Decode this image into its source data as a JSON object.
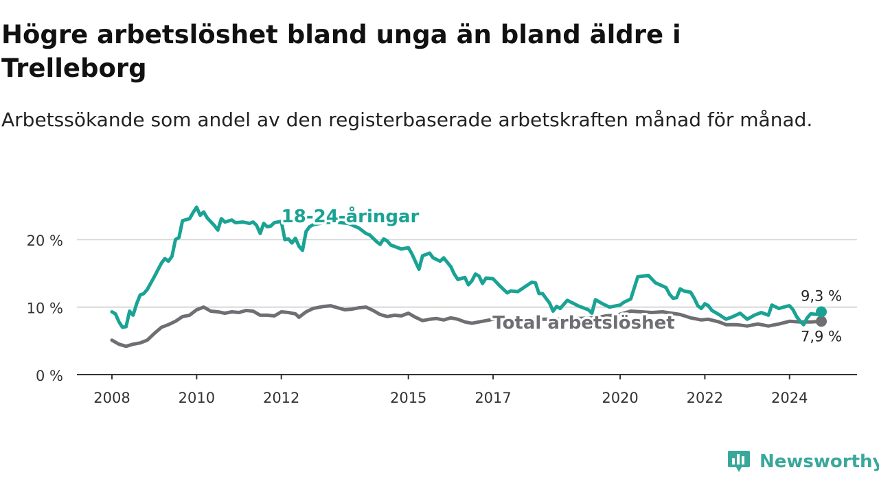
{
  "title": "Högre arbetslöshet bland unga än bland äldre i Trelleborg",
  "subtitle": "Arbetssökande som andel av den registerbaserade arbetskraften månad för månad.",
  "brand": {
    "name": "Newsworthy",
    "icon": "newsworthy-logo-icon",
    "color": "#3aa79b"
  },
  "chart_data": {
    "type": "line",
    "title": "Högre arbetslöshet bland unga än bland äldre i Trelleborg",
    "subtitle": "Arbetssökande som andel av den registerbaserade arbetskraften månad för månad.",
    "xlabel": "",
    "ylabel": "",
    "x_range": [
      "2008-01",
      "2024-10"
    ],
    "ylim": [
      0,
      25
    ],
    "y_ticks": [
      0,
      10,
      20
    ],
    "y_tick_labels": [
      "0 %",
      "10 %",
      "20 %"
    ],
    "x_ticks": [
      "2008-01",
      "2010-01",
      "2012-01",
      "2015-01",
      "2017-01",
      "2020-01",
      "2022-01",
      "2024-01"
    ],
    "x_tick_labels": [
      "2008",
      "2010",
      "2012",
      "2015",
      "2017",
      "2020",
      "2022",
      "2024"
    ],
    "grid": "horizontal",
    "legend": "none",
    "series": [
      {
        "name": "18-24-åringar",
        "color": "#1aa394",
        "end_label": "9,3 %",
        "points": [
          [
            "2008-01",
            9.3
          ],
          [
            "2008-02",
            9.0
          ],
          [
            "2008-03",
            7.8
          ],
          [
            "2008-04",
            7.0
          ],
          [
            "2008-05",
            7.1
          ],
          [
            "2008-06",
            9.4
          ],
          [
            "2008-07",
            8.8
          ],
          [
            "2008-08",
            10.5
          ],
          [
            "2008-09",
            11.8
          ],
          [
            "2008-10",
            12.0
          ],
          [
            "2008-11",
            12.6
          ],
          [
            "2009-01",
            14.5
          ],
          [
            "2009-03",
            16.5
          ],
          [
            "2009-04",
            17.2
          ],
          [
            "2009-05",
            16.8
          ],
          [
            "2009-06",
            17.5
          ],
          [
            "2009-07",
            20.0
          ],
          [
            "2009-08",
            20.3
          ],
          [
            "2009-09",
            22.8
          ],
          [
            "2009-11",
            23.1
          ],
          [
            "2009-12",
            24.0
          ],
          [
            "2010-01",
            24.8
          ],
          [
            "2010-02",
            23.6
          ],
          [
            "2010-03",
            24.1
          ],
          [
            "2010-04",
            23.2
          ],
          [
            "2010-06",
            22.1
          ],
          [
            "2010-07",
            21.4
          ],
          [
            "2010-08",
            23.1
          ],
          [
            "2010-09",
            22.6
          ],
          [
            "2010-11",
            22.9
          ],
          [
            "2010-12",
            22.5
          ],
          [
            "2011-02",
            22.6
          ],
          [
            "2011-04",
            22.4
          ],
          [
            "2011-05",
            22.6
          ],
          [
            "2011-06",
            22.1
          ],
          [
            "2011-07",
            20.9
          ],
          [
            "2011-08",
            22.4
          ],
          [
            "2011-09",
            21.9
          ],
          [
            "2011-10",
            22.0
          ],
          [
            "2011-11",
            22.5
          ],
          [
            "2012-01",
            22.7
          ],
          [
            "2012-02",
            20.0
          ],
          [
            "2012-03",
            20.1
          ],
          [
            "2012-04",
            19.5
          ],
          [
            "2012-05",
            20.2
          ],
          [
            "2012-06",
            19.0
          ],
          [
            "2012-07",
            18.4
          ],
          [
            "2012-08",
            21.2
          ],
          [
            "2012-09",
            21.9
          ],
          [
            "2012-10",
            22.2
          ],
          [
            "2013-01",
            22.5
          ],
          [
            "2013-04",
            22.6
          ],
          [
            "2013-08",
            22.4
          ],
          [
            "2013-11",
            21.7
          ],
          [
            "2014-01",
            20.9
          ],
          [
            "2014-02",
            20.7
          ],
          [
            "2014-04",
            19.7
          ],
          [
            "2014-05",
            19.3
          ],
          [
            "2014-06",
            20.1
          ],
          [
            "2014-07",
            19.8
          ],
          [
            "2014-08",
            19.2
          ],
          [
            "2014-10",
            18.8
          ],
          [
            "2014-11",
            18.6
          ],
          [
            "2015-01",
            18.8
          ],
          [
            "2015-02",
            17.9
          ],
          [
            "2015-04",
            15.6
          ],
          [
            "2015-05",
            17.6
          ],
          [
            "2015-07",
            18.0
          ],
          [
            "2015-08",
            17.3
          ],
          [
            "2015-10",
            16.8
          ],
          [
            "2015-11",
            17.3
          ],
          [
            "2016-01",
            16.0
          ],
          [
            "2016-02",
            14.9
          ],
          [
            "2016-03",
            14.1
          ],
          [
            "2016-05",
            14.4
          ],
          [
            "2016-06",
            13.3
          ],
          [
            "2016-07",
            13.9
          ],
          [
            "2016-08",
            14.9
          ],
          [
            "2016-09",
            14.6
          ],
          [
            "2016-10",
            13.5
          ],
          [
            "2016-11",
            14.3
          ],
          [
            "2017-01",
            14.2
          ],
          [
            "2017-03",
            13.1
          ],
          [
            "2017-05",
            12.1
          ],
          [
            "2017-06",
            12.4
          ],
          [
            "2017-08",
            12.3
          ],
          [
            "2017-10",
            13.0
          ],
          [
            "2017-12",
            13.7
          ],
          [
            "2018-01",
            13.6
          ],
          [
            "2018-02",
            12.0
          ],
          [
            "2018-03",
            12.0
          ],
          [
            "2018-04",
            11.3
          ],
          [
            "2018-05",
            10.6
          ],
          [
            "2018-06",
            9.4
          ],
          [
            "2018-07",
            10.1
          ],
          [
            "2018-08",
            9.8
          ],
          [
            "2018-10",
            11.0
          ],
          [
            "2018-12",
            10.5
          ],
          [
            "2019-01",
            10.2
          ],
          [
            "2019-02",
            10.0
          ],
          [
            "2019-03",
            9.8
          ],
          [
            "2019-04",
            9.6
          ],
          [
            "2019-05",
            9.1
          ],
          [
            "2019-06",
            11.1
          ],
          [
            "2019-08",
            10.5
          ],
          [
            "2019-10",
            10.0
          ],
          [
            "2019-12",
            10.2
          ],
          [
            "2020-01",
            10.3
          ],
          [
            "2020-02",
            10.7
          ],
          [
            "2020-04",
            11.2
          ],
          [
            "2020-06",
            14.5
          ],
          [
            "2020-09",
            14.7
          ],
          [
            "2020-11",
            13.6
          ],
          [
            "2021-02",
            12.9
          ],
          [
            "2021-03",
            11.9
          ],
          [
            "2021-04",
            11.3
          ],
          [
            "2021-05",
            11.4
          ],
          [
            "2021-06",
            12.7
          ],
          [
            "2021-07",
            12.4
          ],
          [
            "2021-09",
            12.2
          ],
          [
            "2021-10",
            11.3
          ],
          [
            "2021-11",
            10.2
          ],
          [
            "2021-12",
            9.8
          ],
          [
            "2022-01",
            10.5
          ],
          [
            "2022-02",
            10.2
          ],
          [
            "2022-03",
            9.5
          ],
          [
            "2022-05",
            8.9
          ],
          [
            "2022-07",
            8.2
          ],
          [
            "2022-09",
            8.6
          ],
          [
            "2022-11",
            9.1
          ],
          [
            "2023-01",
            8.2
          ],
          [
            "2023-03",
            8.8
          ],
          [
            "2023-05",
            9.2
          ],
          [
            "2023-07",
            8.8
          ],
          [
            "2023-08",
            10.3
          ],
          [
            "2023-10",
            9.8
          ],
          [
            "2023-12",
            10.1
          ],
          [
            "2024-01",
            10.2
          ],
          [
            "2024-02",
            9.6
          ],
          [
            "2024-03",
            8.6
          ],
          [
            "2024-04",
            7.9
          ],
          [
            "2024-05",
            7.4
          ],
          [
            "2024-06",
            8.4
          ],
          [
            "2024-07",
            9.0
          ],
          [
            "2024-09",
            8.9
          ],
          [
            "2024-10",
            9.3
          ]
        ]
      },
      {
        "name": "Total arbetslöshet",
        "color": "#6e6e73",
        "end_label": "7,9 %",
        "points": [
          [
            "2008-01",
            5.1
          ],
          [
            "2008-03",
            4.5
          ],
          [
            "2008-05",
            4.2
          ],
          [
            "2008-07",
            4.5
          ],
          [
            "2008-09",
            4.7
          ],
          [
            "2008-11",
            5.1
          ],
          [
            "2009-01",
            6.1
          ],
          [
            "2009-03",
            7.0
          ],
          [
            "2009-05",
            7.4
          ],
          [
            "2009-07",
            7.9
          ],
          [
            "2009-09",
            8.6
          ],
          [
            "2009-11",
            8.8
          ],
          [
            "2010-01",
            9.6
          ],
          [
            "2010-03",
            10.0
          ],
          [
            "2010-05",
            9.4
          ],
          [
            "2010-07",
            9.3
          ],
          [
            "2010-09",
            9.1
          ],
          [
            "2010-11",
            9.3
          ],
          [
            "2011-01",
            9.2
          ],
          [
            "2011-03",
            9.5
          ],
          [
            "2011-05",
            9.4
          ],
          [
            "2011-07",
            8.8
          ],
          [
            "2011-09",
            8.8
          ],
          [
            "2011-11",
            8.7
          ],
          [
            "2012-01",
            9.3
          ],
          [
            "2012-03",
            9.2
          ],
          [
            "2012-05",
            9.0
          ],
          [
            "2012-06",
            8.5
          ],
          [
            "2012-08",
            9.3
          ],
          [
            "2012-10",
            9.8
          ],
          [
            "2013-01",
            10.1
          ],
          [
            "2013-03",
            10.2
          ],
          [
            "2013-05",
            9.9
          ],
          [
            "2013-07",
            9.6
          ],
          [
            "2013-09",
            9.7
          ],
          [
            "2013-11",
            9.9
          ],
          [
            "2014-01",
            10.0
          ],
          [
            "2014-03",
            9.5
          ],
          [
            "2014-05",
            8.9
          ],
          [
            "2014-07",
            8.6
          ],
          [
            "2014-09",
            8.8
          ],
          [
            "2014-11",
            8.7
          ],
          [
            "2015-01",
            9.1
          ],
          [
            "2015-03",
            8.5
          ],
          [
            "2015-05",
            8.0
          ],
          [
            "2015-07",
            8.2
          ],
          [
            "2015-09",
            8.3
          ],
          [
            "2015-11",
            8.1
          ],
          [
            "2016-01",
            8.4
          ],
          [
            "2016-03",
            8.2
          ],
          [
            "2016-05",
            7.8
          ],
          [
            "2016-07",
            7.6
          ],
          [
            "2016-09",
            7.8
          ],
          [
            "2016-11",
            8.0
          ],
          [
            "2017-01",
            8.2
          ],
          [
            "2018-07",
            8.2
          ],
          [
            "2019-01",
            8.3
          ],
          [
            "2019-06",
            8.4
          ],
          [
            "2019-09",
            8.7
          ],
          [
            "2019-12",
            8.8
          ],
          [
            "2020-04",
            9.4
          ],
          [
            "2020-10",
            9.2
          ],
          [
            "2021-01",
            9.3
          ],
          [
            "2021-06",
            8.9
          ],
          [
            "2021-09",
            8.4
          ],
          [
            "2021-12",
            8.1
          ],
          [
            "2022-02",
            8.2
          ],
          [
            "2022-05",
            7.8
          ],
          [
            "2022-07",
            7.4
          ],
          [
            "2022-10",
            7.4
          ],
          [
            "2023-01",
            7.2
          ],
          [
            "2023-04",
            7.5
          ],
          [
            "2023-07",
            7.2
          ],
          [
            "2023-10",
            7.5
          ],
          [
            "2024-01",
            7.9
          ],
          [
            "2024-04",
            7.8
          ],
          [
            "2024-07",
            7.8
          ],
          [
            "2024-10",
            7.9
          ]
        ]
      }
    ]
  }
}
